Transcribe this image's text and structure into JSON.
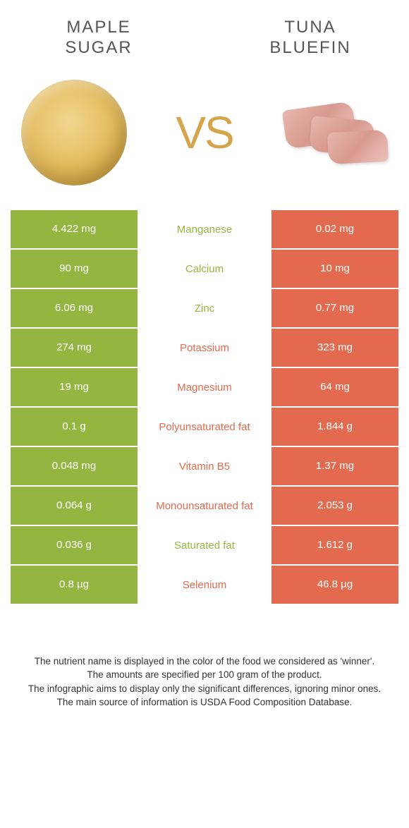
{
  "header": {
    "food_left_line1": "Maple",
    "food_left_line2": "sugar",
    "food_right_line1": "Tuna",
    "food_right_line2": "Bluefin",
    "vs": "VS"
  },
  "colors": {
    "left": "#95b541",
    "right": "#e36a4f",
    "vs": "#d6a44b"
  },
  "rows": [
    {
      "left": "4.422 mg",
      "nutrient": "Manganese",
      "right": "0.02 mg",
      "winner": "left"
    },
    {
      "left": "90 mg",
      "nutrient": "Calcium",
      "right": "10 mg",
      "winner": "left"
    },
    {
      "left": "6.06 mg",
      "nutrient": "Zinc",
      "right": "0.77 mg",
      "winner": "left"
    },
    {
      "left": "274 mg",
      "nutrient": "Potassium",
      "right": "323 mg",
      "winner": "right"
    },
    {
      "left": "19 mg",
      "nutrient": "Magnesium",
      "right": "64 mg",
      "winner": "right"
    },
    {
      "left": "0.1 g",
      "nutrient": "Polyunsaturated fat",
      "right": "1.844 g",
      "winner": "right"
    },
    {
      "left": "0.048 mg",
      "nutrient": "Vitamin B5",
      "right": "1.37 mg",
      "winner": "right"
    },
    {
      "left": "0.064 g",
      "nutrient": "Monounsaturated fat",
      "right": "2.053 g",
      "winner": "right"
    },
    {
      "left": "0.036 g",
      "nutrient": "Saturated fat",
      "right": "1.612 g",
      "winner": "left"
    },
    {
      "left": "0.8 µg",
      "nutrient": "Selenium",
      "right": "46.8 µg",
      "winner": "right"
    }
  ],
  "footer": {
    "line1": "The nutrient name is displayed in the color of the food we considered as 'winner'.",
    "line2": "The amounts are specified per 100 gram of the product.",
    "line3": "The infographic aims to display only the significant differences, ignoring minor ones.",
    "line4": "The main source of information is USDA Food Composition Database."
  }
}
